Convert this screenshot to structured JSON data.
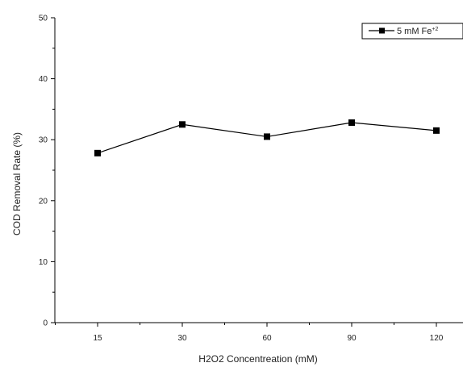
{
  "chart_data": {
    "type": "line",
    "title": "",
    "xlabel": "H2O2 Concentreation (mM)",
    "ylabel": "COD Removal Rate (%)",
    "categories": [
      "15",
      "30",
      "60",
      "90",
      "120"
    ],
    "ylim": [
      0,
      50
    ],
    "yticks": [
      "0",
      "10",
      "20",
      "30",
      "40",
      "50"
    ],
    "grid": false,
    "legend_position": "top-right",
    "series": [
      {
        "name": "5 mM Fe",
        "name_superscript": "+2",
        "values": [
          27.8,
          32.5,
          30.5,
          32.8,
          31.5
        ],
        "color": "#000000",
        "marker": "square"
      }
    ]
  }
}
